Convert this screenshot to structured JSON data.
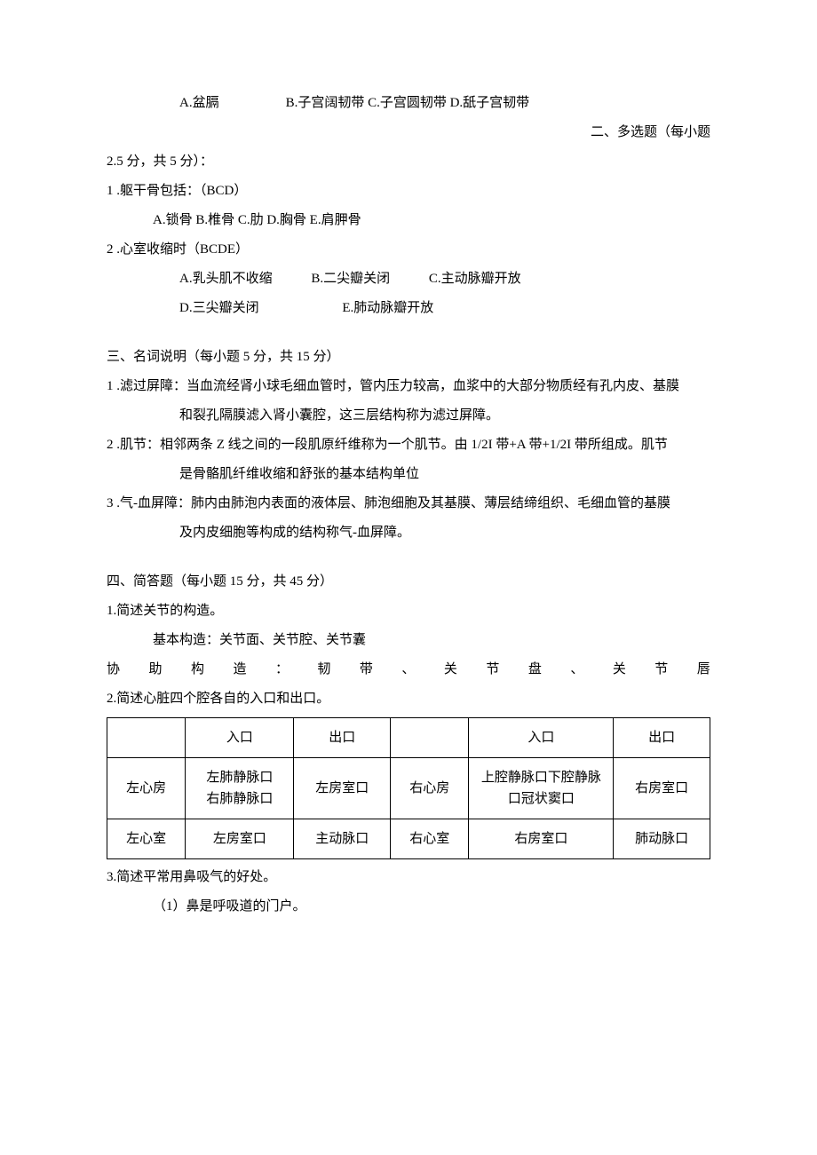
{
  "q_first_options": "A.盆膈　　　　　B.子宫阔韧带 C.子宫圆韧带 D.舐子宫韧带",
  "section2_title": "二、多选题（每小题",
  "section2_cont": "2.5 分，共 5 分）：",
  "mc1_stem": "1 .躯干骨包括：（BCD）",
  "mc1_opts": "A.锁骨 B.椎骨 C.肋 D.胸骨 E.肩胛骨",
  "mc2_stem": "2 .心室收缩时（BCDE）",
  "mc2_a": "A.乳头肌不收缩",
  "mc2_b": "B.二尖瓣关闭",
  "mc2_c": "C.主动脉瓣开放",
  "mc2_d": "D.三尖瓣关闭",
  "mc2_e": "E.肺动脉瓣开放",
  "section3_title": "三、名词说明（每小题 5 分，共 15 分）",
  "term1_a": "1 .滤过屏障：当血流经肾小球毛细血管时，管内压力较高，血浆中的大部分物质经有孔内皮、基膜",
  "term1_b": "和裂孔隔膜滤入肾小囊腔，这三层结构称为滤过屏障。",
  "term2_a": "2 .肌节：相邻两条 Z 线之间的一段肌原纤维称为一个肌节。由 1/2I 带+A 带+1/2I 带所组成。肌节",
  "term2_b": "是骨骼肌纤维收缩和舒张的基本结构单位",
  "term3_a": "3 .气-血屏障：肺内由肺泡内表面的液体层、肺泡细胞及其基膜、薄层结缔组织、毛细血管的基膜",
  "term3_b": "及内皮细胞等构成的结构称气-血屏障。",
  "section4_title": "四、简答题（每小题 15 分，共 45 分）",
  "q41": "1.简述关节的构造。",
  "q41_ans": "基本构造：关节面、关节腔、关节囊",
  "q41_justify": [
    "协",
    "助",
    "构",
    "造",
    "：",
    "韧",
    "带",
    "、",
    "关",
    "节",
    "盘",
    "、",
    "关",
    "节",
    "唇"
  ],
  "q42": "2.简述心脏四个腔各自的入口和出口。",
  "table": {
    "head": [
      "",
      "入口",
      "出口",
      "",
      "入口",
      "出口"
    ],
    "rows": [
      [
        "左心房",
        "左肺静脉口\n右肺静脉口",
        "左房室口",
        "右心房",
        "上腔静脉口下腔静脉\n口冠状窦口",
        "右房室口"
      ],
      [
        "左心室",
        "左房室口",
        "主动脉口",
        "右心室",
        "右房室口",
        "肺动脉口"
      ]
    ]
  },
  "q43": "3.简述平常用鼻吸气的好处。",
  "q43_ans": "（1）鼻是呼吸道的门户。"
}
